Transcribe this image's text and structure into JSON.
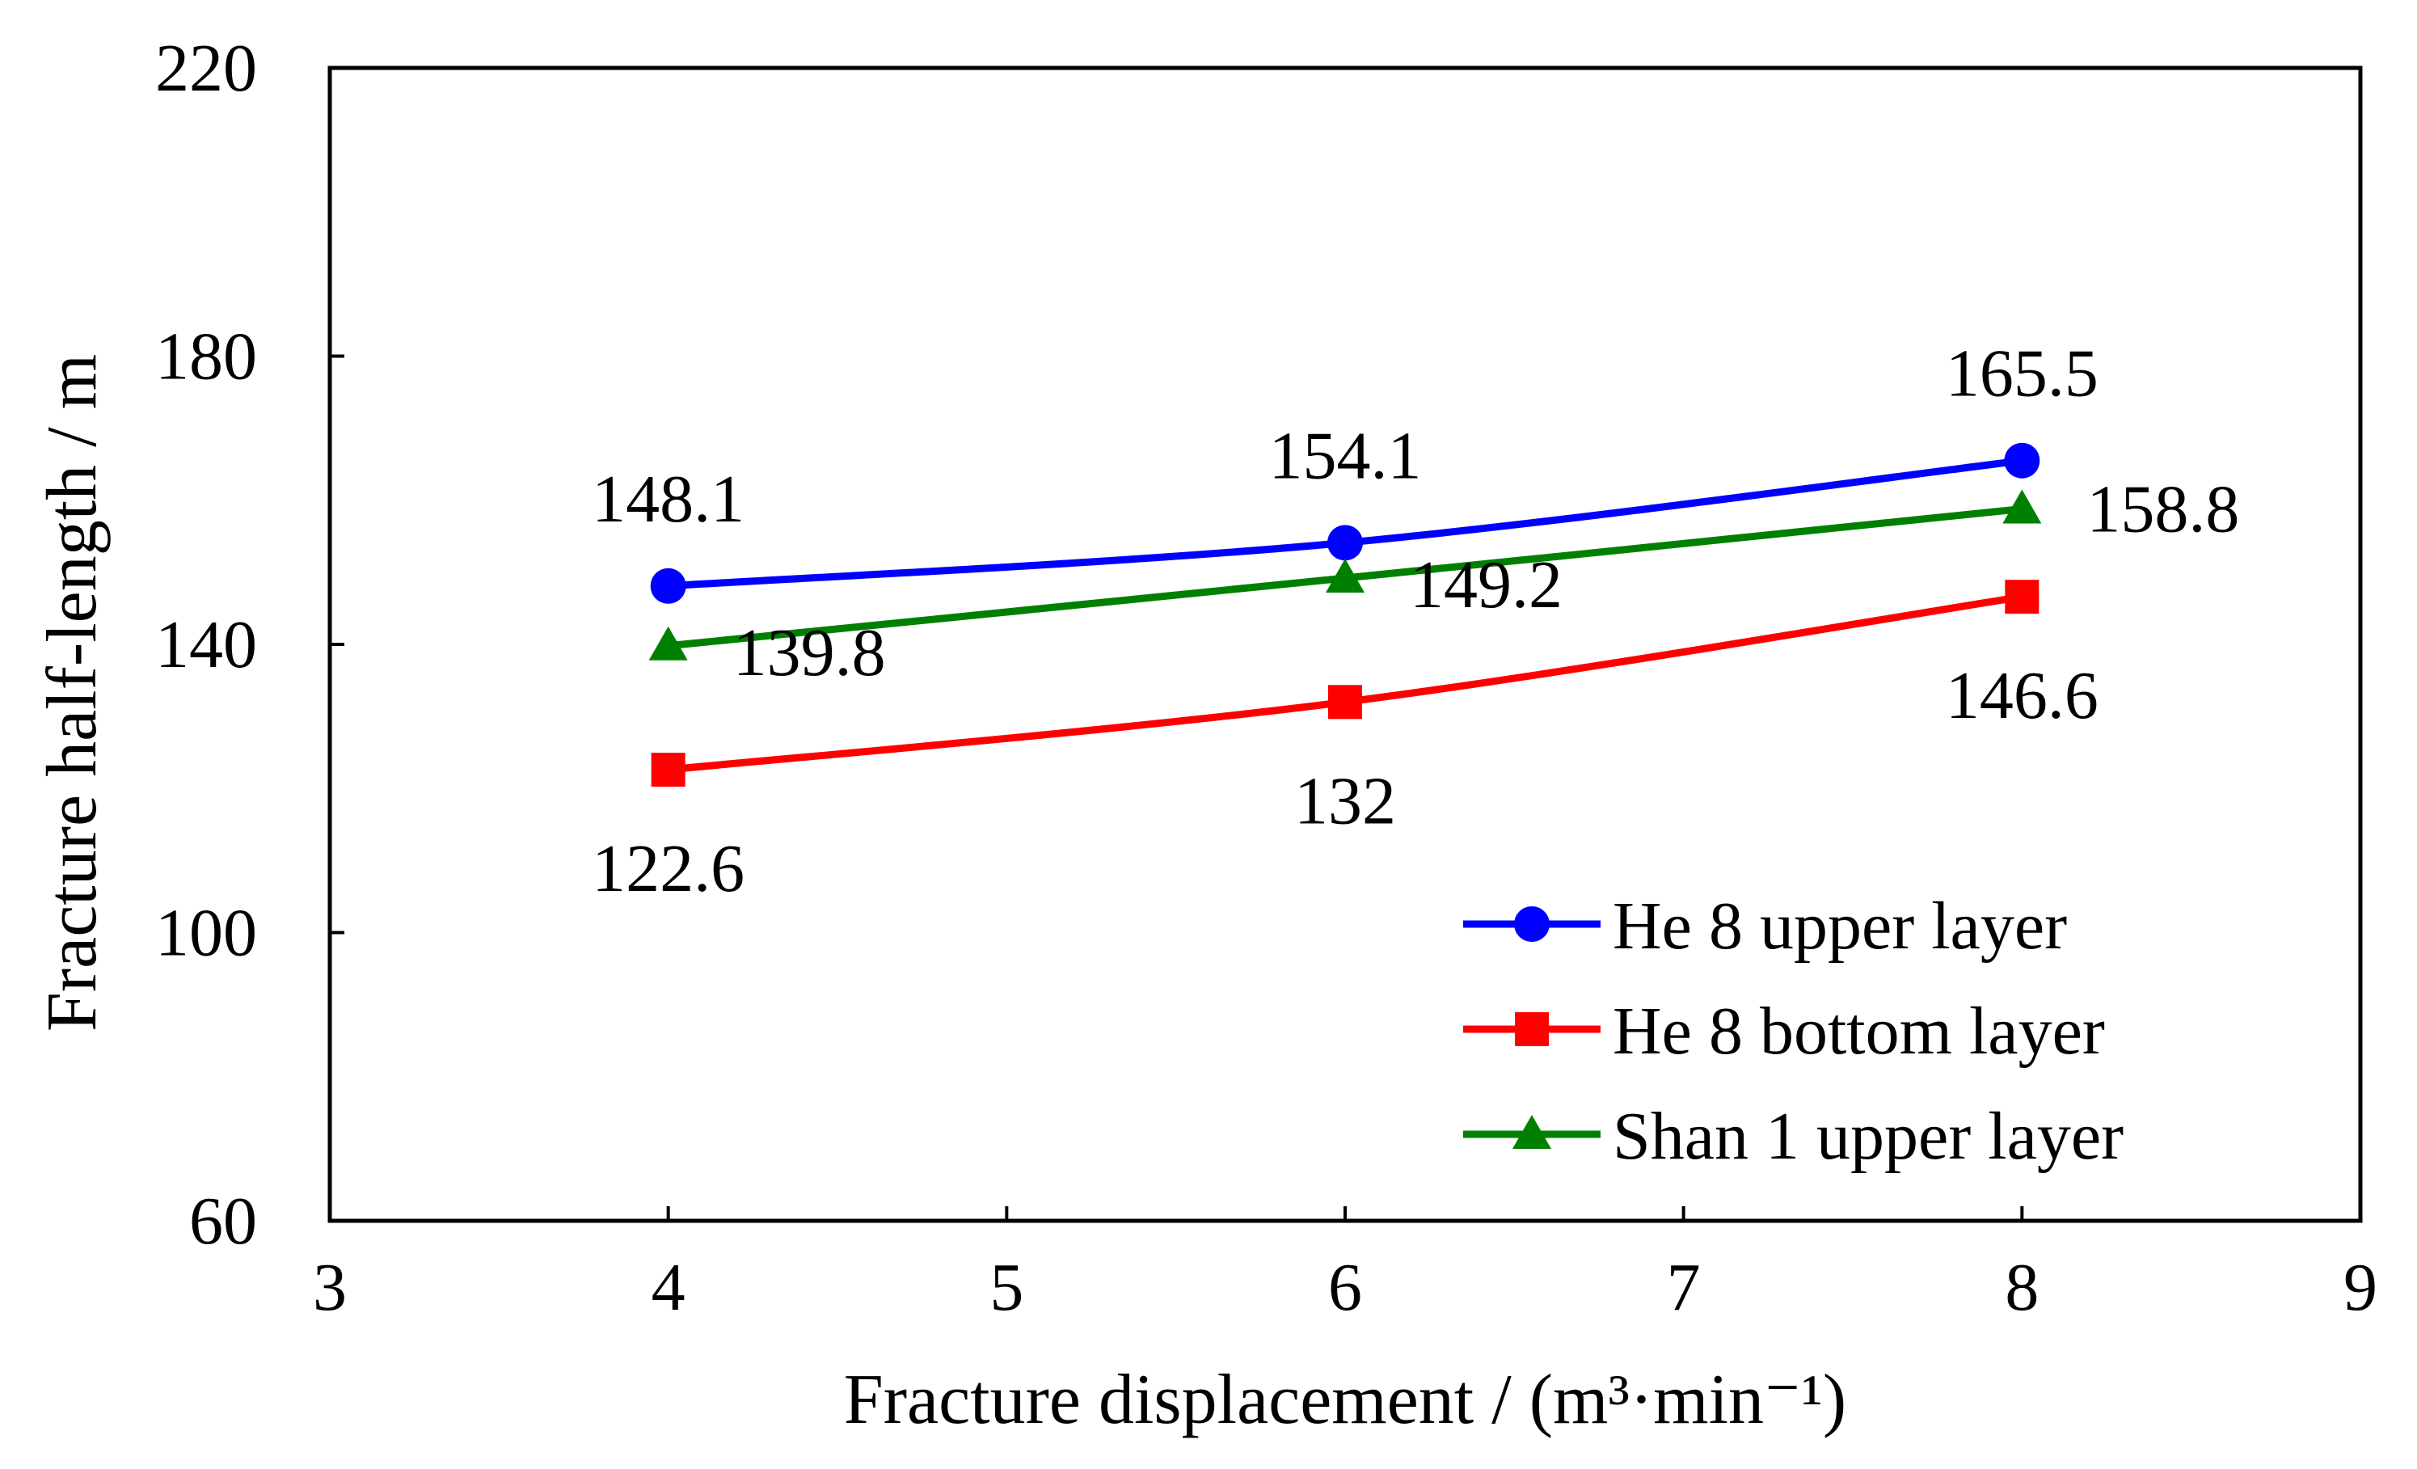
{
  "chart_data": {
    "type": "line",
    "title": "",
    "xlabel": "Fracture displacement / (m³·min⁻¹)",
    "ylabel": "Fracture half-length / m",
    "xlim": [
      3,
      9
    ],
    "ylim": [
      60,
      220
    ],
    "xticks": [
      3,
      4,
      5,
      6,
      7,
      8,
      9
    ],
    "yticks": [
      60,
      100,
      140,
      180,
      220
    ],
    "x_tick_labels": [
      "3",
      "4",
      "5",
      "6",
      "7",
      "8",
      "9"
    ],
    "y_tick_labels": [
      "60",
      "100",
      "140",
      "180",
      "220"
    ],
    "grid": false,
    "legend_position": "bottom-right",
    "x": [
      4,
      6,
      8
    ],
    "series": [
      {
        "name": "He 8 upper layer",
        "color": "#0000ff",
        "marker": "circle",
        "values": [
          148.1,
          154.1,
          165.5
        ],
        "labels": [
          "148.1",
          "154.1",
          "165.5"
        ],
        "label_positions": [
          "above",
          "above",
          "above"
        ]
      },
      {
        "name": "He 8 bottom layer",
        "color": "#ff0000",
        "marker": "square",
        "values": [
          122.6,
          132,
          146.6
        ],
        "labels": [
          "122.6",
          "132",
          "146.6"
        ],
        "label_positions": [
          "below",
          "below",
          "below"
        ]
      },
      {
        "name": "Shan 1 upper layer",
        "color": "#008000",
        "marker": "triangle",
        "values": [
          139.8,
          149.2,
          158.8
        ],
        "labels": [
          "139.8",
          "149.2",
          "158.8"
        ],
        "label_positions": [
          "right-below",
          "right-below",
          "right"
        ]
      }
    ]
  }
}
